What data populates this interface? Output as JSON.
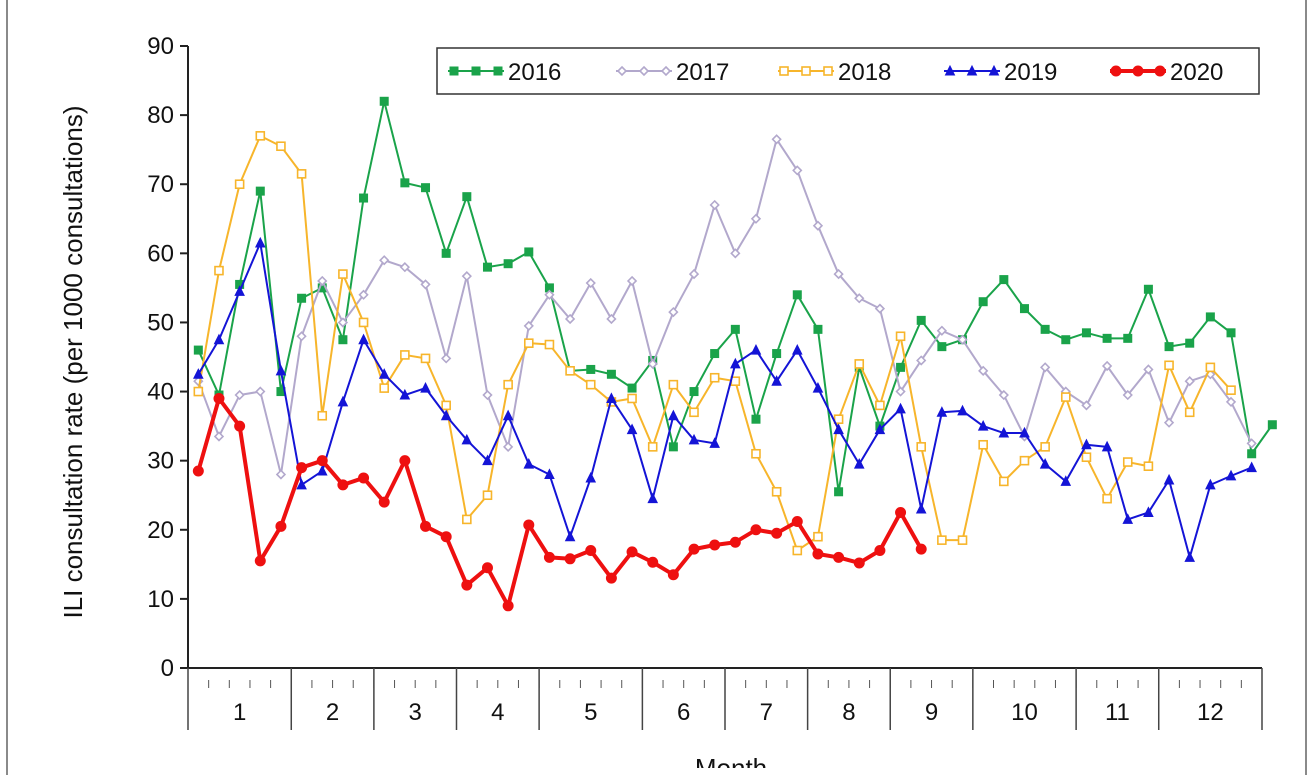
{
  "chart_data": {
    "type": "line",
    "ylabel": "ILI consultation rate (per 1000 consultations)",
    "xlabel": "Month",
    "ylim": [
      0,
      90
    ],
    "yticks": [
      0,
      10,
      20,
      30,
      40,
      50,
      60,
      70,
      80,
      90
    ],
    "months": [
      "1",
      "2",
      "3",
      "4",
      "5",
      "6",
      "7",
      "8",
      "9",
      "10",
      "11",
      "12"
    ],
    "weeks_per_month": [
      5,
      4,
      4,
      4,
      5,
      4,
      4,
      4,
      4,
      5,
      4,
      5
    ],
    "legend_position": "top-right",
    "series": [
      {
        "name": "2016",
        "color": "#1aa34a",
        "marker": "square",
        "filled": true,
        "stroke_width": 2,
        "values": [
          46,
          39.5,
          55.5,
          69,
          40,
          53.5,
          55,
          47.5,
          68,
          82,
          70.2,
          69.5,
          60,
          68.2,
          58,
          58.5,
          60.2,
          55,
          43,
          43.2,
          42.5,
          40.5,
          44.5,
          32,
          40,
          45.5,
          49,
          36,
          45.5,
          54,
          49,
          25.5,
          43.5,
          35,
          43.5,
          50.3,
          46.5,
          47.5,
          53,
          56.2,
          52,
          49,
          47.5,
          48.5,
          47.7,
          47.7,
          54.8,
          46.5,
          47,
          50.8,
          48.5,
          31,
          35.2
        ]
      },
      {
        "name": "2017",
        "color": "#b2a8cc",
        "marker": "diamond",
        "filled": false,
        "stroke_width": 2,
        "values": [
          41.5,
          33.5,
          39.5,
          40,
          28,
          48,
          56,
          50,
          54,
          59,
          58,
          55.5,
          44.8,
          56.7,
          39.5,
          32,
          49.5,
          54,
          50.5,
          55.7,
          50.5,
          56,
          44,
          51.5,
          57,
          67,
          60,
          65,
          76.5,
          72,
          64,
          57,
          53.5,
          52,
          40,
          44.5,
          48.8,
          47.5,
          43,
          39.5,
          33.5,
          43.5,
          40,
          38,
          43.7,
          39.5,
          43.2,
          35.5,
          41.5,
          42.5,
          38.5,
          32.5
        ]
      },
      {
        "name": "2018",
        "color": "#f7b52b",
        "marker": "square",
        "filled": false,
        "stroke_width": 2,
        "values": [
          40,
          57.5,
          70,
          77,
          75.5,
          71.5,
          36.5,
          57,
          50,
          40.5,
          45.3,
          44.8,
          38,
          21.5,
          25,
          41,
          47,
          46.8,
          43,
          41,
          38.5,
          39,
          32,
          41,
          37,
          42,
          41.5,
          31,
          25.5,
          17,
          19,
          36,
          44,
          38,
          48,
          32,
          18.5,
          18.5,
          32.3,
          27,
          30,
          32,
          39.2,
          30.5,
          24.5,
          29.8,
          29.2,
          43.8,
          37,
          43.5,
          40.2
        ]
      },
      {
        "name": "2019",
        "color": "#1414d6",
        "marker": "triangle",
        "filled": true,
        "stroke_width": 2,
        "values": [
          42.5,
          47.5,
          54.5,
          61.5,
          43,
          26.5,
          28.5,
          38.5,
          47.5,
          42.5,
          39.5,
          40.5,
          36.5,
          33,
          30,
          36.5,
          29.5,
          28,
          19,
          27.5,
          39,
          34.5,
          24.5,
          36.5,
          33,
          32.5,
          44,
          46,
          41.5,
          46,
          40.5,
          34.5,
          29.5,
          34.5,
          37.5,
          23,
          37,
          37.2,
          35,
          34,
          34,
          29.5,
          27,
          32.3,
          32,
          21.5,
          22.5,
          27.2,
          16,
          26.5,
          27.8,
          29
        ]
      },
      {
        "name": "2020",
        "color": "#ee1010",
        "marker": "circle",
        "filled": true,
        "stroke_width": 4,
        "values": [
          28.5,
          39,
          35,
          15.5,
          20.5,
          29,
          30,
          26.5,
          27.5,
          24,
          30,
          20.5,
          19,
          12,
          14.5,
          9,
          20.7,
          16,
          15.8,
          17,
          13,
          16.8,
          15.3,
          13.5,
          17.2,
          17.8,
          18.2,
          20,
          19.5,
          21.2,
          16.5,
          16,
          15.2,
          17,
          22.5,
          17.2
        ]
      }
    ]
  }
}
